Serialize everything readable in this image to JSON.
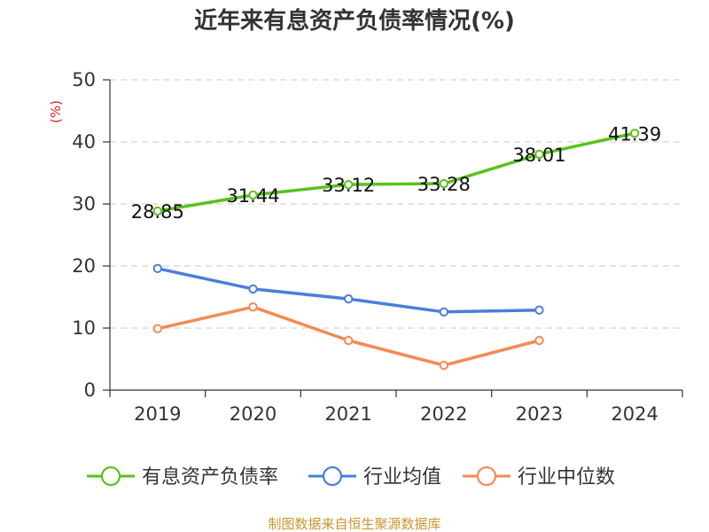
{
  "chart_data": {
    "type": "line",
    "title": "近年来有息资产负债率情况(%)",
    "ylabel": "(%)",
    "xlabel": "",
    "categories": [
      "2019",
      "2020",
      "2021",
      "2022",
      "2023",
      "2024"
    ],
    "ylim": [
      0,
      50
    ],
    "yticks": [
      0,
      10,
      20,
      30,
      40,
      50
    ],
    "grid": true,
    "legend_position": "bottom",
    "series": [
      {
        "name": "有息资产负债率",
        "color": "#5ac21d",
        "show_labels": true,
        "values": [
          28.85,
          31.44,
          33.12,
          33.28,
          38.01,
          41.39
        ]
      },
      {
        "name": "行业均值",
        "color": "#4a7fda",
        "show_labels": false,
        "values": [
          19.6,
          16.3,
          14.7,
          12.6,
          12.9,
          null
        ]
      },
      {
        "name": "行业中位数",
        "color": "#f48a55",
        "show_labels": false,
        "values": [
          9.9,
          13.4,
          8.0,
          4.0,
          8.0,
          null
        ]
      }
    ],
    "source": "制图数据来自恒生聚源数据库"
  }
}
